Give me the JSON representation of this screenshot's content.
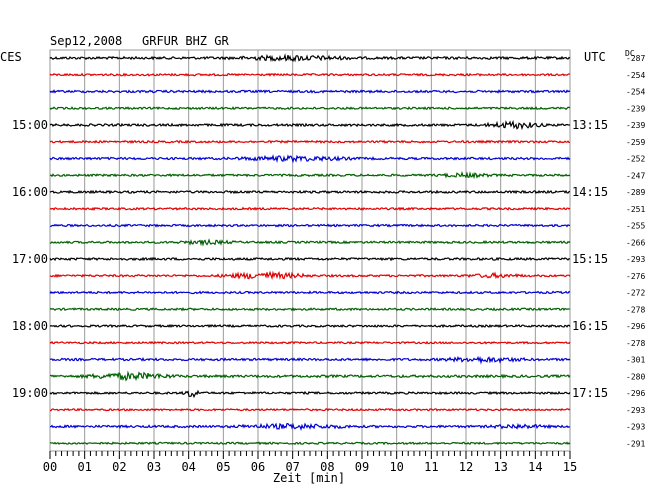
{
  "header": {
    "date": "Sep12,2008",
    "station": "GRFUR BHZ GR",
    "left_tz": "CES",
    "right_tz": "UTC",
    "dc_label": "DC"
  },
  "chart_data": {
    "type": "line",
    "title": "Sep12,2008   GRFUR BHZ GR",
    "xlabel": "Zeit [min]",
    "ylabel": "",
    "xlim": [
      0,
      15
    ],
    "x_tick_labels": [
      "00",
      "01",
      "02",
      "03",
      "04",
      "05",
      "06",
      "07",
      "08",
      "09",
      "10",
      "11",
      "12",
      "13",
      "14",
      "15"
    ],
    "trace_colors": [
      "#000000",
      "#e00000",
      "#0000d0",
      "#006000"
    ],
    "grid": true,
    "hour_labels": [
      {
        "trace_index": 4,
        "local": "15:00",
        "utc": "13:15"
      },
      {
        "trace_index": 8,
        "local": "16:00",
        "utc": "14:15"
      },
      {
        "trace_index": 12,
        "local": "17:00",
        "utc": "15:15"
      },
      {
        "trace_index": 16,
        "local": "18:00",
        "utc": "16:15"
      },
      {
        "trace_index": 20,
        "local": "19:00",
        "utc": "17:15"
      }
    ],
    "dc_offsets": [
      "-287",
      "-254",
      "-254",
      "-239",
      "-239",
      "-259",
      "-252",
      "-247",
      "-289",
      "-251",
      "-255",
      "-266",
      "-293",
      "-276",
      "-272",
      "-278",
      "-296",
      "-278",
      "-301",
      "-280",
      "-296",
      "-293",
      "-293",
      "-291"
    ],
    "traces": [
      {
        "index": 0,
        "color": "#000000",
        "amp": 1.2,
        "events": [
          {
            "at": 7,
            "width": 2,
            "amp": 2
          }
        ]
      },
      {
        "index": 1,
        "color": "#e00000",
        "amp": 1.0,
        "events": []
      },
      {
        "index": 2,
        "color": "#0000d0",
        "amp": 1.1,
        "events": []
      },
      {
        "index": 3,
        "color": "#006000",
        "amp": 1.0,
        "events": []
      },
      {
        "index": 4,
        "color": "#000000",
        "amp": 1.1,
        "events": [
          {
            "at": 13.4,
            "width": 1,
            "amp": 3
          }
        ]
      },
      {
        "index": 5,
        "color": "#e00000",
        "amp": 1.0,
        "events": []
      },
      {
        "index": 6,
        "color": "#0000d0",
        "amp": 1.1,
        "events": [
          {
            "at": 7,
            "width": 2,
            "amp": 2
          }
        ]
      },
      {
        "index": 7,
        "color": "#006000",
        "amp": 1.0,
        "events": [
          {
            "at": 12,
            "width": 1,
            "amp": 1.5
          }
        ]
      },
      {
        "index": 8,
        "color": "#000000",
        "amp": 1.1,
        "events": []
      },
      {
        "index": 9,
        "color": "#e00000",
        "amp": 1.0,
        "events": []
      },
      {
        "index": 10,
        "color": "#0000d0",
        "amp": 1.0,
        "events": []
      },
      {
        "index": 11,
        "color": "#006000",
        "amp": 1.0,
        "events": [
          {
            "at": 4.5,
            "width": 1,
            "amp": 1.5
          }
        ]
      },
      {
        "index": 12,
        "color": "#000000",
        "amp": 1.1,
        "events": []
      },
      {
        "index": 13,
        "color": "#e00000",
        "amp": 1.0,
        "events": [
          {
            "at": 6.2,
            "width": 1.5,
            "amp": 3
          },
          {
            "at": 12.8,
            "width": 1,
            "amp": 1.5
          }
        ]
      },
      {
        "index": 14,
        "color": "#0000d0",
        "amp": 1.0,
        "events": []
      },
      {
        "index": 15,
        "color": "#006000",
        "amp": 1.0,
        "events": []
      },
      {
        "index": 16,
        "color": "#000000",
        "amp": 1.0,
        "events": []
      },
      {
        "index": 17,
        "color": "#e00000",
        "amp": 0.9,
        "events": []
      },
      {
        "index": 18,
        "color": "#0000d0",
        "amp": 1.1,
        "events": [
          {
            "at": 12.5,
            "width": 1.5,
            "amp": 2
          }
        ]
      },
      {
        "index": 19,
        "color": "#006000",
        "amp": 1.2,
        "events": [
          {
            "at": 2.3,
            "width": 1.5,
            "amp": 3
          }
        ]
      },
      {
        "index": 20,
        "color": "#000000",
        "amp": 1.0,
        "events": [
          {
            "at": 4.1,
            "width": 0.3,
            "amp": 4
          }
        ]
      },
      {
        "index": 21,
        "color": "#e00000",
        "amp": 0.9,
        "events": []
      },
      {
        "index": 22,
        "color": "#0000d0",
        "amp": 1.1,
        "events": [
          {
            "at": 7,
            "width": 2,
            "amp": 2
          },
          {
            "at": 13.5,
            "width": 1,
            "amp": 1.5
          }
        ]
      },
      {
        "index": 23,
        "color": "#006000",
        "amp": 0.9,
        "events": []
      }
    ]
  }
}
